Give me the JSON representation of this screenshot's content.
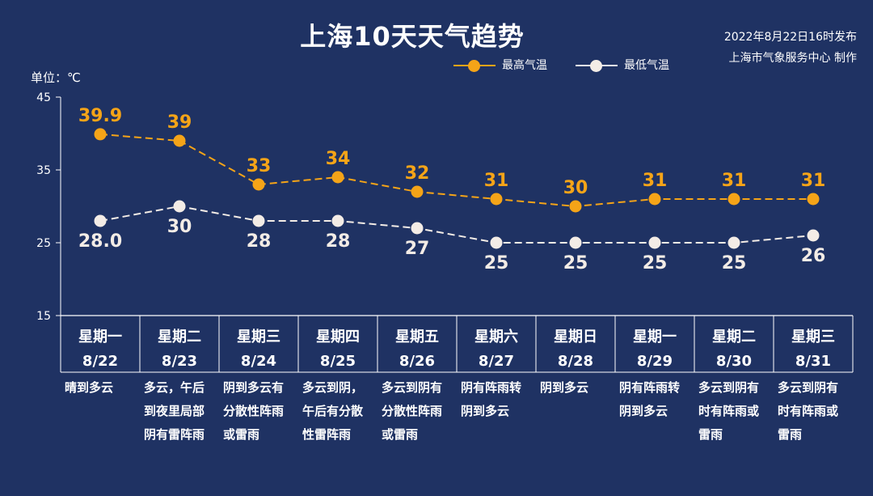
{
  "title": "上海10天天气趋势",
  "source": {
    "line1": "2022年8月22日16时发布",
    "line2": "上海市气象服务中心 制作"
  },
  "unit_label": "单位：℃",
  "colors": {
    "background": "#1f3263",
    "high": "#f5a418",
    "low": "#f3ece6",
    "axis": "#ffffff"
  },
  "chart_data": {
    "type": "line",
    "title": "上海10天天气趋势",
    "ylabel": "单位：℃",
    "ylim": [
      15,
      45
    ],
    "yticks": [
      "15",
      "25",
      "35",
      "45"
    ],
    "grid": false,
    "legend_position": "top-right",
    "series": [
      {
        "name": "最高气温",
        "values": [
          39.9,
          39,
          33,
          34,
          32,
          31,
          30,
          31,
          31,
          31
        ],
        "labels": [
          "39.9",
          "39",
          "33",
          "34",
          "32",
          "31",
          "30",
          "31",
          "31",
          "31"
        ]
      },
      {
        "name": "最低气温",
        "values": [
          28.0,
          30,
          28,
          28,
          27,
          25,
          25,
          25,
          25,
          26
        ],
        "labels": [
          "28.0",
          "30",
          "28",
          "28",
          "27",
          "25",
          "25",
          "25",
          "25",
          "26"
        ]
      }
    ],
    "days": [
      {
        "weekday": "星期一",
        "date": "8/22",
        "weather": [
          "晴到多云"
        ]
      },
      {
        "weekday": "星期二",
        "date": "8/23",
        "weather": [
          "多云，午后",
          "到夜里局部",
          "阴有雷阵雨"
        ]
      },
      {
        "weekday": "星期三",
        "date": "8/24",
        "weather": [
          "阴到多云有",
          "分散性阵雨",
          "或雷雨"
        ]
      },
      {
        "weekday": "星期四",
        "date": "8/25",
        "weather": [
          "多云到阴，",
          "午后有分散",
          "性雷阵雨"
        ]
      },
      {
        "weekday": "星期五",
        "date": "8/26",
        "weather": [
          "多云到阴有",
          "分散性阵雨",
          "或雷雨"
        ]
      },
      {
        "weekday": "星期六",
        "date": "8/27",
        "weather": [
          "阴有阵雨转",
          "阴到多云"
        ]
      },
      {
        "weekday": "星期日",
        "date": "8/28",
        "weather": [
          "阴到多云"
        ]
      },
      {
        "weekday": "星期一",
        "date": "8/29",
        "weather": [
          "阴有阵雨转",
          "阴到多云"
        ]
      },
      {
        "weekday": "星期二",
        "date": "8/30",
        "weather": [
          "多云到阴有",
          "时有阵雨或",
          "雷雨"
        ]
      },
      {
        "weekday": "星期三",
        "date": "8/31",
        "weather": [
          "多云到阴有",
          "时有阵雨或",
          "雷雨"
        ]
      }
    ]
  }
}
